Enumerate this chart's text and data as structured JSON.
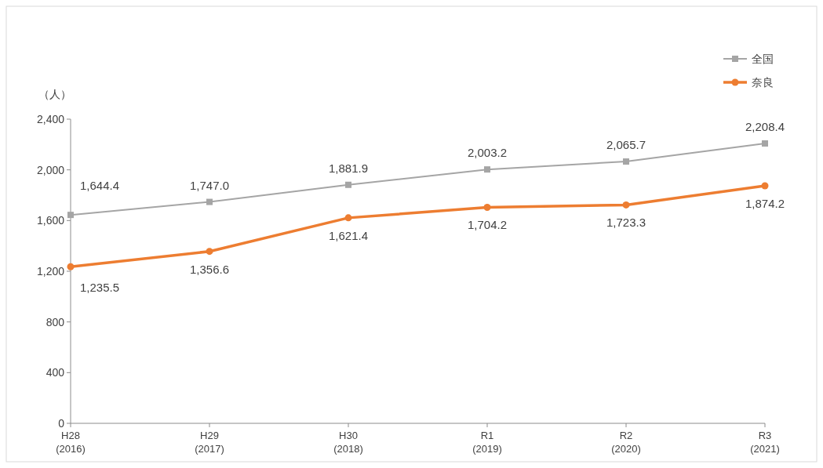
{
  "chart_data": {
    "type": "line",
    "ylabel": "（人）",
    "categories": [
      "H28\n(2016)",
      "H29\n(2017)",
      "H30\n(2018)",
      "R1\n(2019)",
      "R2\n(2020)",
      "R3\n(2021)"
    ],
    "ylim": [
      0,
      2400
    ],
    "yticks": [
      0,
      400,
      800,
      {
        "value": 1200,
        "label": "1,200"
      },
      {
        "value": 1600,
        "label": "1,600"
      },
      {
        "value": 2000,
        "label": "2,000"
      },
      {
        "value": 2400,
        "label": "2,400"
      }
    ],
    "legend": "top right",
    "grid": false,
    "line_style": "solid",
    "series": [
      {
        "name": "全国",
        "color": "#a5a5a5",
        "marker": "square",
        "values": [
          1644.4,
          1747.0,
          1881.9,
          2003.2,
          2065.7,
          2208.4
        ],
        "value_labels": [
          "1,644.4",
          "1,747.0",
          "1,881.9",
          "2,003.2",
          "2,065.7",
          "2,208.4"
        ]
      },
      {
        "name": "奈良",
        "color": "#ed7d31",
        "marker": "circle",
        "values": [
          1235.5,
          1356.6,
          1621.4,
          1704.2,
          1723.3,
          1874.2
        ],
        "value_labels": [
          "1,235.5",
          "1,356.6",
          "1,621.4",
          "1,704.2",
          "1,723.3",
          "1,874.2"
        ]
      }
    ]
  }
}
